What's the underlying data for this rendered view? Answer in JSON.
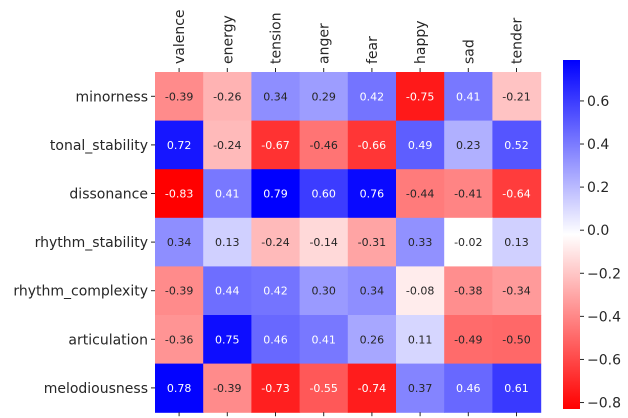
{
  "chart_data": {
    "type": "heatmap",
    "title": "",
    "xlabel": "",
    "ylabel": "",
    "columns": [
      "valence",
      "energy",
      "tension",
      "anger",
      "fear",
      "happy",
      "sad",
      "tender"
    ],
    "rows": [
      "minorness",
      "tonal_stability",
      "dissonance",
      "rhythm_stability",
      "rhythm_complexity",
      "articulation",
      "melodiousness"
    ],
    "values": [
      [
        -0.39,
        -0.26,
        0.34,
        0.29,
        0.42,
        -0.75,
        0.41,
        -0.21
      ],
      [
        0.72,
        -0.24,
        -0.67,
        -0.46,
        -0.66,
        0.49,
        0.23,
        0.52
      ],
      [
        -0.83,
        0.41,
        0.79,
        0.6,
        0.76,
        -0.44,
        -0.41,
        -0.64
      ],
      [
        0.34,
        0.13,
        -0.24,
        -0.14,
        -0.31,
        0.33,
        -0.02,
        0.13
      ],
      [
        -0.39,
        0.44,
        0.42,
        0.3,
        0.34,
        -0.08,
        -0.38,
        -0.34
      ],
      [
        -0.36,
        0.75,
        0.46,
        0.41,
        0.26,
        0.11,
        -0.49,
        -0.5
      ],
      [
        0.78,
        -0.39,
        -0.73,
        -0.55,
        -0.74,
        0.37,
        0.46,
        0.61
      ]
    ],
    "cell_labels": [
      [
        "-0.39",
        "-0.26",
        "0.34",
        "0.29",
        "0.42",
        "-0.75",
        "0.41",
        "-0.21"
      ],
      [
        "0.72",
        "-0.24",
        "-0.67",
        "-0.46",
        "-0.66",
        "0.49",
        "0.23",
        "0.52"
      ],
      [
        "-0.83",
        "0.41",
        "0.79",
        "0.60",
        "0.76",
        "-0.44",
        "-0.41",
        "-0.64"
      ],
      [
        "0.34",
        "0.13",
        "-0.24",
        "-0.14",
        "-0.31",
        "0.33",
        "-0.02",
        "0.13"
      ],
      [
        "-0.39",
        "0.44",
        "0.42",
        "0.30",
        "0.34",
        "-0.08",
        "-0.38",
        "-0.34"
      ],
      [
        "-0.36",
        "0.75",
        "0.46",
        "0.41",
        "0.26",
        "0.11",
        "-0.49",
        "-0.50"
      ],
      [
        "0.78",
        "-0.39",
        "-0.73",
        "-0.55",
        "-0.74",
        "0.37",
        "0.46",
        "0.61"
      ]
    ],
    "colormap": "bwr_r",
    "colormap_colors": {
      "low": "#ff0000",
      "mid": "#ffffff",
      "high": "#0000ff"
    },
    "vmin": -0.83,
    "vmax": 0.79,
    "colorbar": {
      "ticks": [
        0.6,
        0.4,
        0.2,
        0.0,
        -0.2,
        -0.4,
        -0.6,
        -0.8
      ],
      "tick_labels": [
        "0.6",
        "0.4",
        "0.2",
        "0.0",
        "−0.2",
        "−0.4",
        "−0.6",
        "−0.8"
      ],
      "placement": "right"
    },
    "column_label_position": "top",
    "column_label_rotation": "vertical",
    "grid": false
  }
}
